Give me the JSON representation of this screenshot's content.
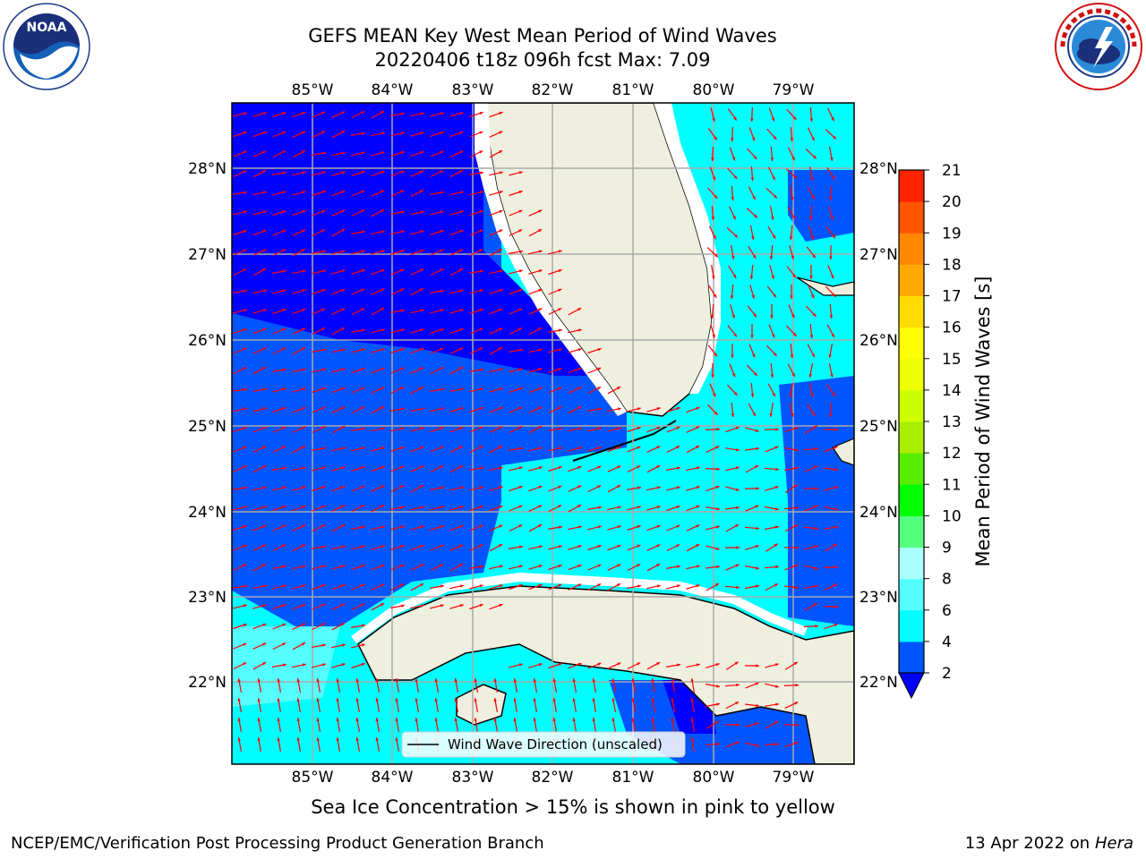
{
  "header": {
    "title_line1": "GEFS MEAN Key West Mean Period of Wind Waves",
    "title_line2": "20220406 t18z 096h fcst   Max: 7.09"
  },
  "logos": {
    "left": "NOAA",
    "right": "NATIONAL WEATHER SERVICE"
  },
  "map": {
    "lon_labels": [
      "85°W",
      "84°W",
      "83°W",
      "82°W",
      "81°W",
      "80°W",
      "79°W"
    ],
    "lat_labels": [
      "28°N",
      "27°N",
      "26°N",
      "25°N",
      "24°N",
      "23°N",
      "22°N"
    ],
    "lon_values": [
      -85,
      -84,
      -83,
      -82,
      -81,
      -80,
      -79
    ],
    "lat_values": [
      28,
      27,
      26,
      25,
      24,
      23,
      22
    ],
    "lon_range": [
      -86.0,
      -78.3
    ],
    "lat_range": [
      21.0,
      28.8
    ],
    "legend_label": "Wind Wave Direction (unscaled)",
    "arrow_color": "#ff0000",
    "land_color": "#efefdf"
  },
  "colorbar": {
    "label": "Mean Period of Wind Waves [s]",
    "ticks": [
      "2",
      "4",
      "6",
      "8",
      "9",
      "10",
      "11",
      "12",
      "13",
      "14",
      "15",
      "16",
      "17",
      "18",
      "19",
      "20",
      "21"
    ],
    "colors": [
      "#0055ff",
      "#00ffff",
      "#55ffff",
      "#aaffff",
      "#55ff80",
      "#00ff00",
      "#55ee00",
      "#aaee00",
      "#ccff00",
      "#eeff00",
      "#ffff00",
      "#ffdd00",
      "#ffaa00",
      "#ff8800",
      "#ff5500",
      "#ff2200"
    ],
    "under_color": "#0000ff",
    "min": 2,
    "max": 21
  },
  "footer": {
    "subtitle": "Sea Ice Concentration > 15% is shown in pink to yellow",
    "left": "NCEP/EMC/Verification Post Processing Product Generation Branch",
    "right_date": "13 Apr 2022 on",
    "right_host": "Hera"
  }
}
